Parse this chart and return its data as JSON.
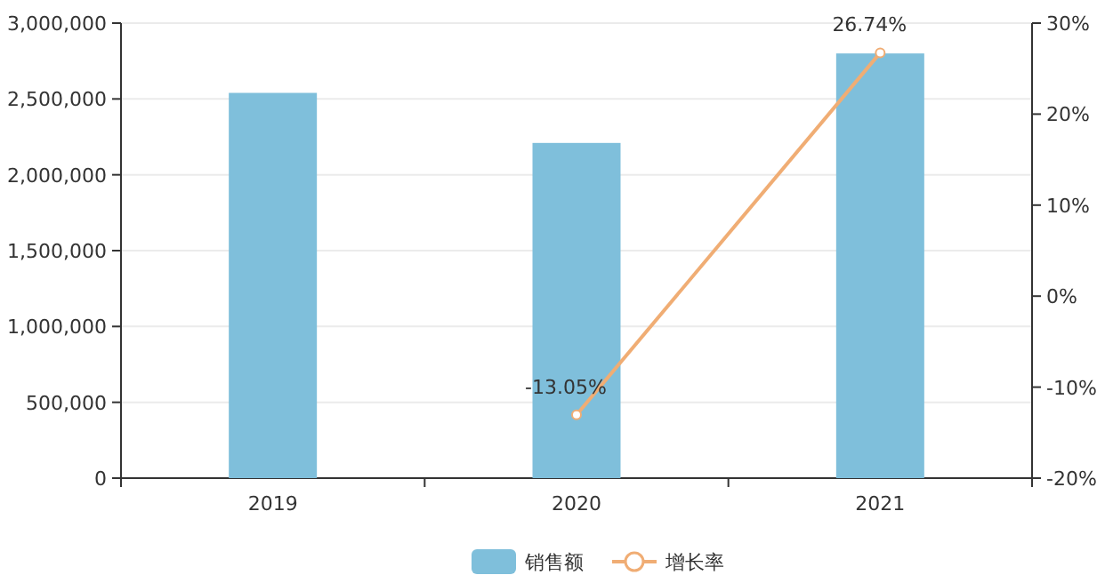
{
  "chart_data": {
    "type": "bar",
    "categories": [
      "2019",
      "2020",
      "2021"
    ],
    "series": [
      {
        "name": "销售额",
        "color": "#7fbfdb",
        "values": [
          2540000,
          2210000,
          2800000
        ]
      },
      {
        "name": "增长率",
        "type": "line",
        "axis": "y2",
        "color": "#f0ad74",
        "marker": "circle",
        "values": [
          null,
          -13.05,
          26.74
        ],
        "value_labels": [
          null,
          "-13.05%",
          "26.74%"
        ]
      }
    ],
    "ylim": [
      0,
      3000000
    ],
    "yticks": [
      {
        "value": 0,
        "label": "0"
      },
      {
        "value": 500000,
        "label": "500,000"
      },
      {
        "value": 1000000,
        "label": "1,000,000"
      },
      {
        "value": 1500000,
        "label": "1,500,000"
      },
      {
        "value": 2000000,
        "label": "2,000,000"
      },
      {
        "value": 2500000,
        "label": "2,500,000"
      },
      {
        "value": 3000000,
        "label": "3,000,000"
      }
    ],
    "y2lim": [
      -20,
      30
    ],
    "y2ticks": [
      {
        "value": -20,
        "label": "-20%"
      },
      {
        "value": -10,
        "label": "-10%"
      },
      {
        "value": 0,
        "label": "0%"
      },
      {
        "value": 10,
        "label": "10%"
      },
      {
        "value": 20,
        "label": "20%"
      },
      {
        "value": 30,
        "label": "30%"
      }
    ],
    "grid": "y",
    "legend": "bottom"
  }
}
